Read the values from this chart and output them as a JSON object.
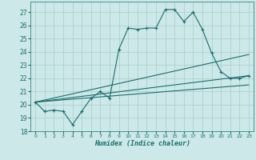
{
  "xlabel": "Humidex (Indice chaleur)",
  "bg_color": "#cce8e8",
  "grid_color": "#aacccc",
  "line_color": "#1a6e6e",
  "xlim": [
    -0.5,
    23.5
  ],
  "ylim": [
    18,
    27.8
  ],
  "yticks": [
    18,
    19,
    20,
    21,
    22,
    23,
    24,
    25,
    26,
    27
  ],
  "xticks": [
    0,
    1,
    2,
    3,
    4,
    5,
    6,
    7,
    8,
    9,
    10,
    11,
    12,
    13,
    14,
    15,
    16,
    17,
    18,
    19,
    20,
    21,
    22,
    23
  ],
  "series_main": {
    "x": [
      0,
      1,
      2,
      3,
      4,
      5,
      6,
      7,
      8,
      9,
      10,
      11,
      12,
      13,
      14,
      15,
      16,
      17,
      18,
      19,
      20,
      21,
      22,
      23
    ],
    "y": [
      20.2,
      19.5,
      19.6,
      19.5,
      18.5,
      19.5,
      20.5,
      21.0,
      20.5,
      24.2,
      25.8,
      25.7,
      25.8,
      25.8,
      27.2,
      27.2,
      26.3,
      27.0,
      25.7,
      23.9,
      22.5,
      22.0,
      22.0,
      22.2
    ]
  },
  "series_lines": [
    {
      "x": [
        0,
        23
      ],
      "y": [
        20.2,
        22.2
      ]
    },
    {
      "x": [
        0,
        23
      ],
      "y": [
        20.2,
        21.5
      ]
    },
    {
      "x": [
        0,
        23
      ],
      "y": [
        20.2,
        23.8
      ]
    }
  ]
}
